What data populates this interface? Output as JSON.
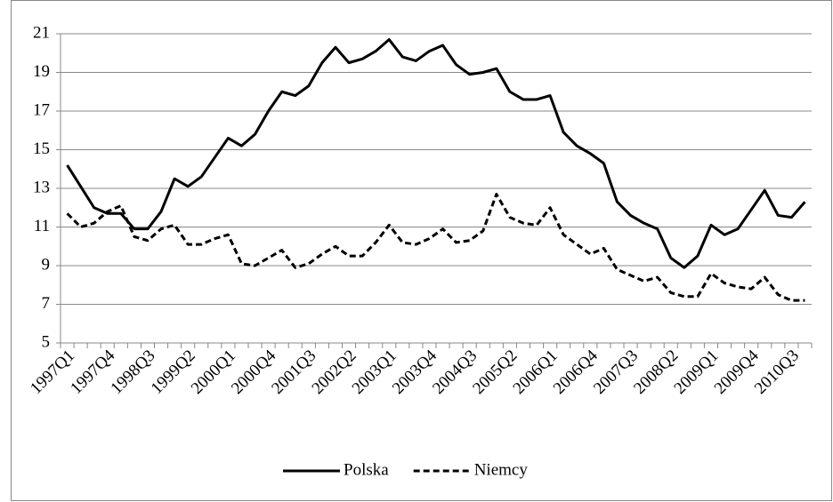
{
  "chart_data": {
    "type": "line",
    "categories": [
      "1997Q1",
      null,
      null,
      "1997Q4",
      null,
      null,
      "1998Q3",
      null,
      null,
      "1999Q2",
      null,
      null,
      "2000Q1",
      null,
      null,
      "2000Q4",
      null,
      null,
      "2001Q3",
      null,
      null,
      "2002Q2",
      null,
      null,
      "2003Q1",
      null,
      null,
      "2003Q4",
      null,
      null,
      "2004Q3",
      null,
      null,
      "2005Q2",
      null,
      null,
      "2006Q1",
      null,
      null,
      "2006Q4",
      null,
      null,
      "2007Q3",
      null,
      null,
      "2008Q2",
      null,
      null,
      "2009Q1",
      null,
      null,
      "2009Q4",
      null,
      null,
      "2010Q3",
      null
    ],
    "series": [
      {
        "name": "Polska",
        "color": "#000000",
        "dash": "solid",
        "values": [
          14.2,
          13.1,
          12.0,
          11.7,
          11.7,
          10.9,
          10.9,
          11.8,
          13.5,
          13.1,
          13.6,
          14.6,
          15.6,
          15.2,
          15.8,
          17.0,
          18.0,
          17.8,
          18.3,
          19.5,
          20.3,
          19.5,
          19.7,
          20.1,
          20.7,
          19.8,
          19.6,
          20.1,
          20.4,
          19.4,
          18.9,
          19.0,
          19.2,
          18.0,
          17.6,
          17.6,
          17.8,
          15.9,
          15.2,
          14.8,
          14.3,
          12.3,
          11.6,
          11.2,
          10.9,
          9.4,
          8.9,
          9.5,
          11.1,
          10.6,
          10.9,
          11.9,
          12.9,
          11.6,
          11.5,
          12.3
        ]
      },
      {
        "name": "Niemcy",
        "color": "#000000",
        "dash": "dashed",
        "values": [
          11.7,
          11.0,
          11.2,
          11.8,
          12.1,
          10.5,
          10.3,
          10.9,
          11.1,
          10.1,
          10.1,
          10.4,
          10.6,
          9.1,
          9.0,
          9.4,
          9.8,
          8.9,
          9.1,
          9.6,
          10.0,
          9.5,
          9.5,
          10.2,
          11.1,
          10.2,
          10.1,
          10.4,
          10.9,
          10.2,
          10.3,
          10.8,
          12.7,
          11.5,
          11.2,
          11.1,
          12.0,
          10.6,
          10.1,
          9.6,
          9.9,
          8.8,
          8.5,
          8.2,
          8.4,
          7.6,
          7.4,
          7.4,
          8.6,
          8.1,
          7.9,
          7.8,
          8.4,
          7.5,
          7.2,
          7.2
        ]
      }
    ],
    "ylim": [
      5,
      21
    ],
    "yticks": [
      5,
      7,
      9,
      11,
      13,
      15,
      17,
      19,
      21
    ],
    "grid": true,
    "legend": "bottom"
  }
}
